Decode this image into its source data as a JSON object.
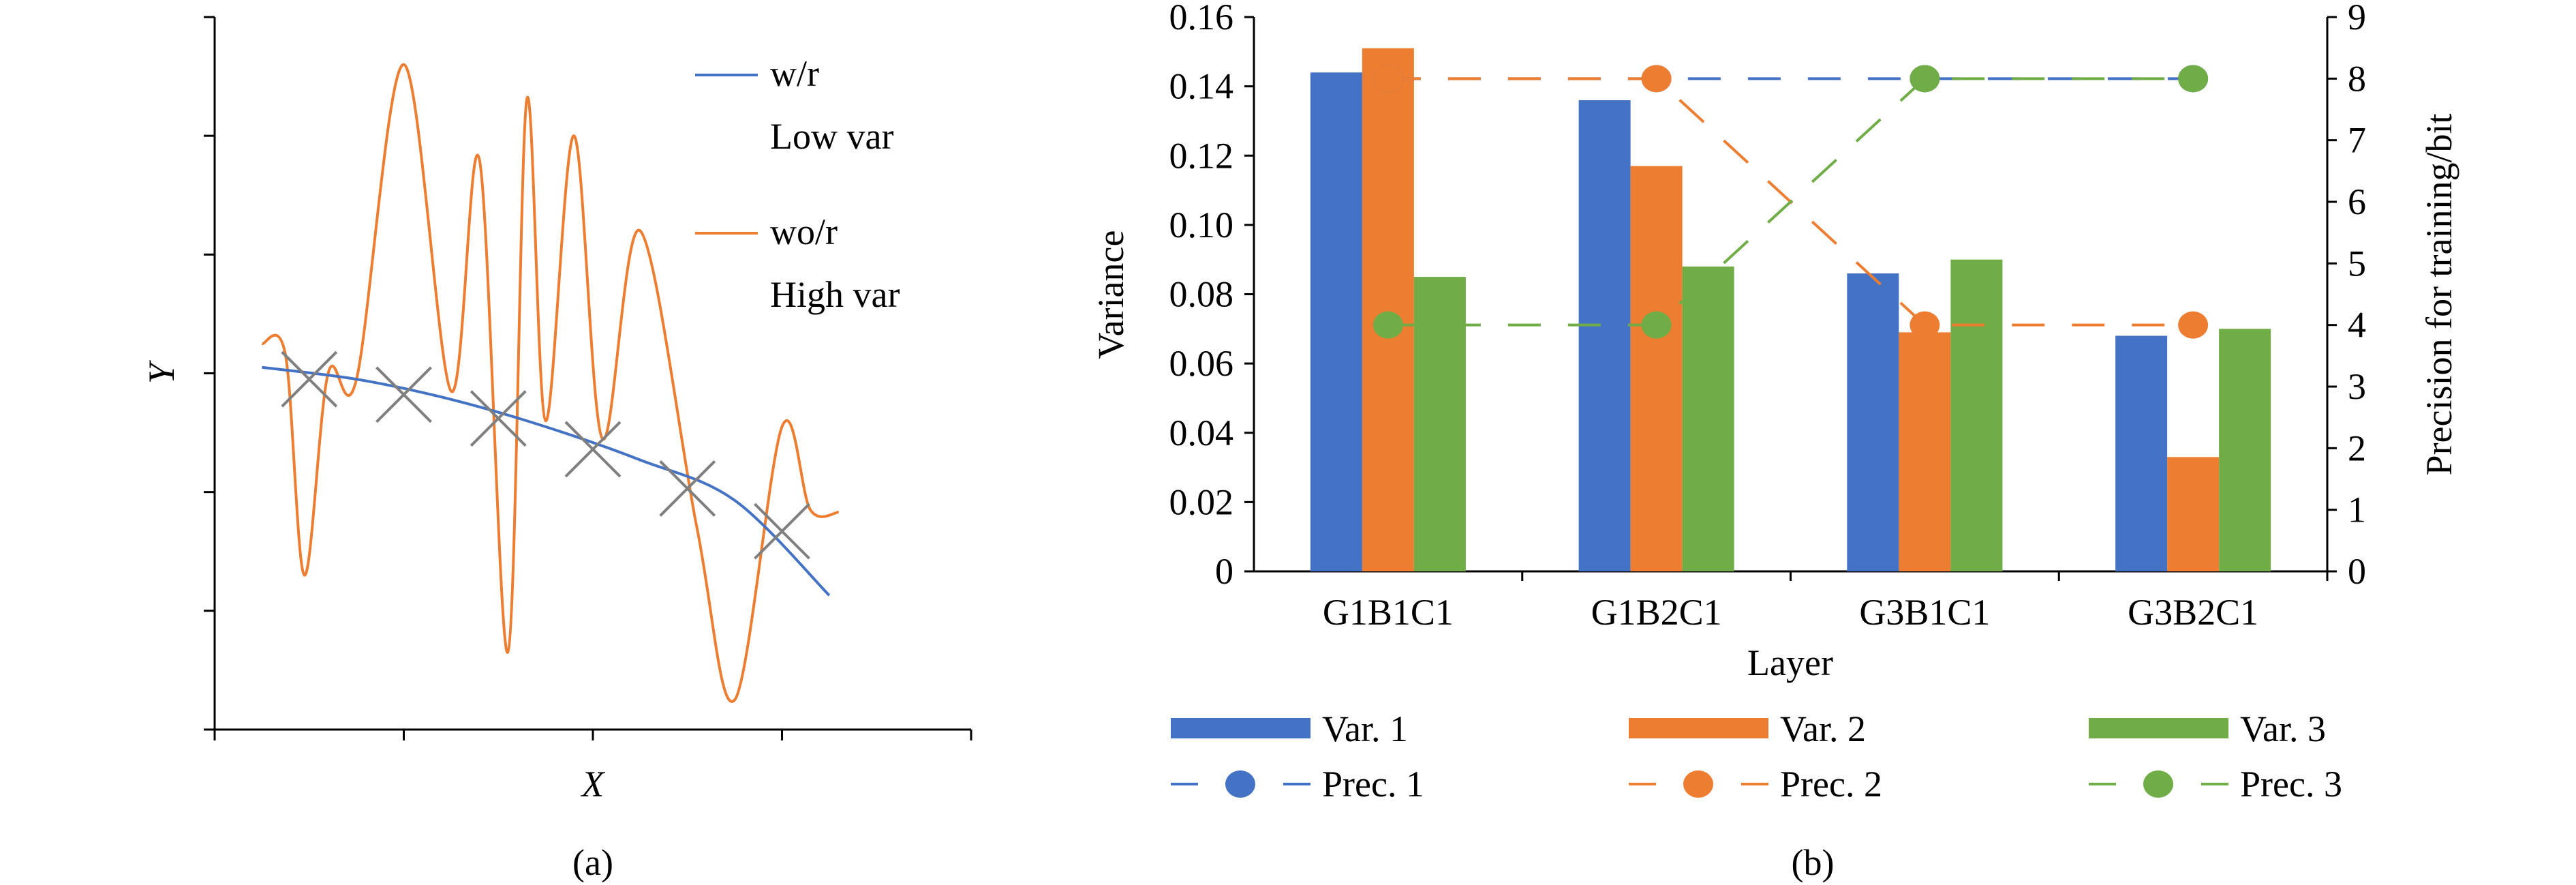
{
  "chart_data": [
    {
      "panel_label": "(a)",
      "type": "line",
      "xlabel": "X",
      "ylabel": "Y",
      "xlim": [
        0,
        8
      ],
      "ylim": [
        0,
        6
      ],
      "series": [
        {
          "name": "w/r",
          "description": "Low var",
          "color": "#4472C4",
          "x": [
            0.5,
            1.5,
            2.5,
            3.5,
            4.5,
            5.5,
            6.5
          ],
          "y": [
            3.05,
            2.95,
            2.78,
            2.55,
            2.27,
            1.93,
            1.13
          ]
        },
        {
          "name": "wo/r",
          "description": "High var",
          "color": "#ED7D31",
          "x": [
            0.5,
            0.75,
            0.95,
            1.2,
            1.5,
            2.0,
            2.5,
            2.8,
            3.1,
            3.3,
            3.5,
            3.8,
            4.1,
            4.5,
            5.1,
            5.5,
            6.0,
            6.3,
            6.6
          ],
          "y": [
            3.25,
            3.15,
            1.3,
            3.0,
            2.95,
            5.6,
            2.85,
            4.8,
            0.65,
            5.3,
            2.6,
            5.0,
            2.45,
            4.2,
            1.7,
            0.25,
            2.55,
            1.85,
            1.83
          ]
        }
      ],
      "markers": [
        {
          "symbol": "×",
          "x": [
            1.0,
            2.0,
            3.0,
            4.0,
            5.0,
            6.0
          ],
          "y": [
            2.95,
            2.82,
            2.62,
            2.36,
            2.03,
            1.67
          ]
        }
      ]
    },
    {
      "panel_label": "(b)",
      "type": "bar",
      "title": "",
      "xlabel": "Layer",
      "ylabel": "Variance",
      "y2label": "Precision for training/bit",
      "categories": [
        "G1B1C1",
        "G1B2C1",
        "G3B1C1",
        "G3B2C1"
      ],
      "ylim": [
        0,
        0.16
      ],
      "y_ticks": [
        "0",
        "0.02",
        "0.04",
        "0.06",
        "0.08",
        "0.10",
        "0.12",
        "0.14",
        "0.16"
      ],
      "y2lim": [
        0,
        9
      ],
      "y2_ticks": [
        "0",
        "1",
        "2",
        "3",
        "4",
        "5",
        "6",
        "7",
        "8",
        "9"
      ],
      "series": [
        {
          "name": "Var. 1",
          "color": "#4472C4",
          "values": [
            0.144,
            0.136,
            0.086,
            0.068
          ]
        },
        {
          "name": "Var. 2",
          "color": "#ED7D31",
          "values": [
            0.151,
            0.117,
            0.069,
            0.033
          ]
        },
        {
          "name": "Var. 3",
          "color": "#70AD47",
          "values": [
            0.085,
            0.088,
            0.09,
            0.07
          ]
        }
      ],
      "line_series": [
        {
          "name": "Prec. 1",
          "color": "#4472C4",
          "axis": "right",
          "values": [
            8,
            8,
            8,
            8
          ]
        },
        {
          "name": "Prec. 2",
          "color": "#ED7D31",
          "axis": "right",
          "values": [
            8,
            8,
            4,
            4
          ]
        },
        {
          "name": "Prec. 3",
          "color": "#70AD47",
          "axis": "right",
          "values": [
            4,
            4,
            8,
            8
          ]
        }
      ]
    }
  ]
}
